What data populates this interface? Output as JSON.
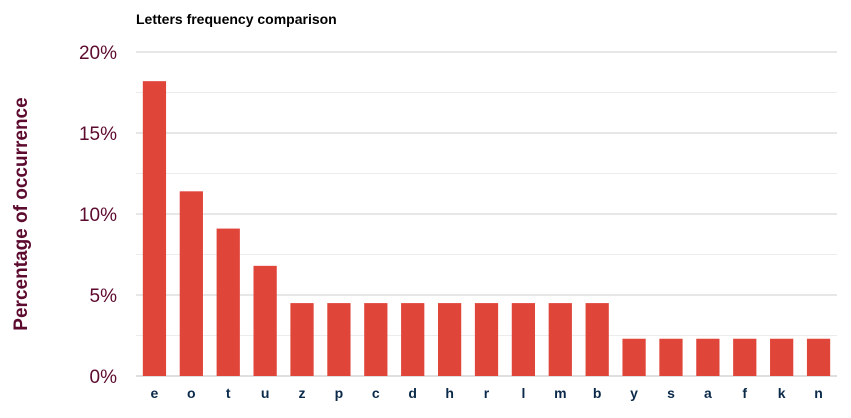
{
  "chart_data": {
    "type": "bar",
    "title": "Letters frequency comparison",
    "ylabel": "Percentage of occurrence",
    "xlabel": "",
    "categories": [
      "e",
      "o",
      "t",
      "u",
      "z",
      "p",
      "c",
      "d",
      "h",
      "r",
      "l",
      "m",
      "b",
      "y",
      "s",
      "a",
      "f",
      "k",
      "n"
    ],
    "values": [
      18.2,
      11.4,
      9.1,
      6.8,
      4.5,
      4.5,
      4.5,
      4.5,
      4.5,
      4.5,
      4.5,
      4.5,
      4.5,
      2.3,
      2.3,
      2.3,
      2.3,
      2.3,
      2.3
    ],
    "ylim": [
      0,
      20
    ],
    "yticks": [
      0,
      5,
      10,
      15,
      20
    ],
    "ytick_labels": [
      "0%",
      "5%",
      "10%",
      "15%",
      "20%"
    ],
    "grid": true,
    "legend": "none",
    "colors": {
      "bar": "#e0453a",
      "grid": "#d9d9d9",
      "axis_text": "#5c0a2e",
      "category_text": "#0b2a4a",
      "title": "#000000"
    }
  }
}
